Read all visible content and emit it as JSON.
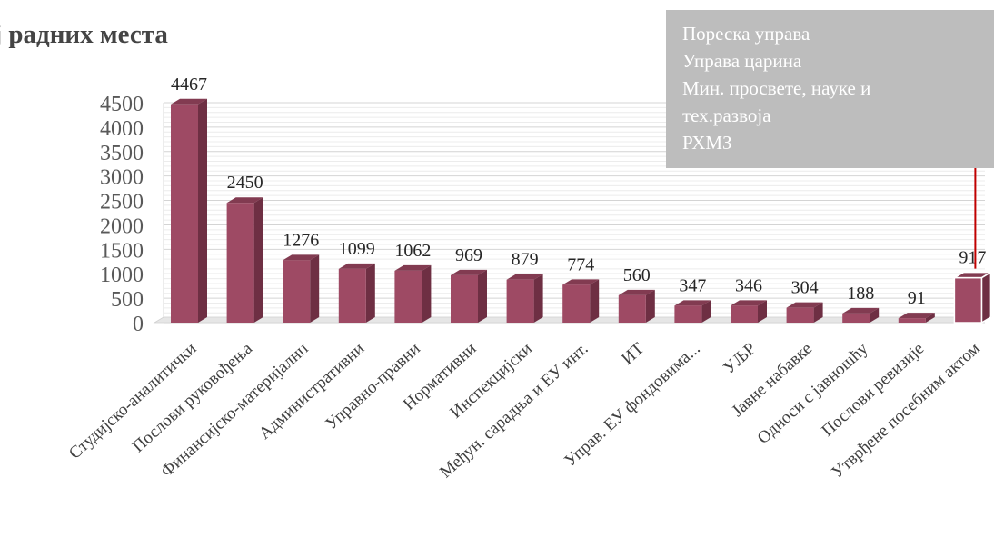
{
  "chart_data": {
    "type": "bar",
    "title": "ој радних места",
    "categories": [
      "Студијско-аналитички",
      "Послови руковођења",
      "Финансијско-материјални",
      "Административни",
      "Управно-правни",
      "Нормативни",
      "Инспекцијски",
      "Међун. сарадња и ЕУ инт.",
      "ИТ",
      "Управ. ЕУ фондовима...",
      "УЉР",
      "Јавне набавке",
      "Односи с јавношћу",
      "Послови ревизије",
      "Утврђене посебним актом"
    ],
    "values": [
      4467,
      2450,
      1276,
      1099,
      1062,
      969,
      879,
      774,
      560,
      347,
      346,
      304,
      188,
      91,
      917
    ],
    "ylim": [
      0,
      4500
    ],
    "yticks": [
      0,
      500,
      1000,
      1500,
      2000,
      2500,
      3000,
      3500,
      4000,
      4500
    ],
    "grid": true,
    "bar_colors": {
      "front": "#9e4a64",
      "side": "#6e2f43",
      "top": "#823b51"
    },
    "highlight_index": 14,
    "annotation": {
      "lines": [
        "Пореска управа",
        "Управа царина",
        "Мин. просвете, науке и",
        "тех.развоја",
        "РХМЗ"
      ],
      "box_color": "#bdbdbd",
      "arrow_color": "#c00000"
    }
  }
}
